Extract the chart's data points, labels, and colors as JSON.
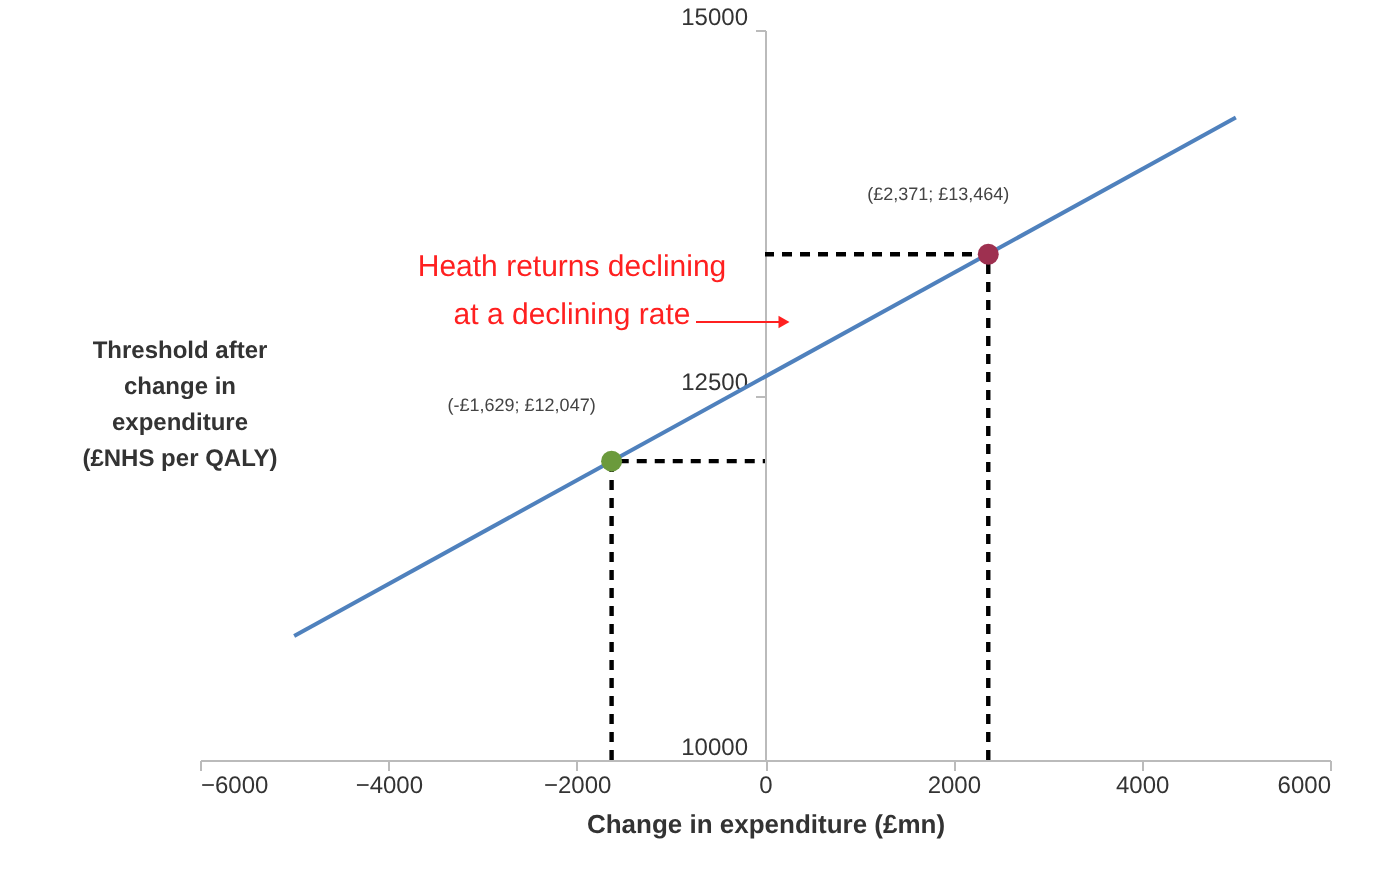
{
  "chart_data": {
    "type": "line",
    "xlabel": "Change in expenditure (£mn)",
    "ylabel": "Threshold after\nchange in\nexpenditure\n(£NHS per QALY)",
    "xlim": [
      -6000,
      6000
    ],
    "xticks": [
      -6000,
      -4000,
      -2000,
      0,
      2000,
      4000,
      6000
    ],
    "ylim": [
      10000,
      15000
    ],
    "yticks": [
      10000,
      12500,
      15000
    ],
    "grid": false,
    "series": [
      {
        "type": "line",
        "color": "#4f81bd",
        "marker": "none",
        "line_style": "solid",
        "x": [
          -5000,
          5000
        ],
        "values": [
          10850,
          14400
        ]
      },
      {
        "type": "line",
        "color": "#000000",
        "marker": "none",
        "line_style": "dashed",
        "x": [
          -1629,
          -1629,
          0
        ],
        "values": [
          10000,
          12047,
          12047
        ]
      },
      {
        "type": "line",
        "color": "#000000",
        "marker": "none",
        "line_style": "dashed",
        "x": [
          2371,
          2371,
          0
        ],
        "values": [
          10000,
          13464,
          13464
        ]
      },
      {
        "type": "scatter",
        "color": "#6b9a3c",
        "marker": "circle",
        "x": [
          -1629
        ],
        "values": [
          12047
        ]
      },
      {
        "type": "scatter",
        "color": "#9e3050",
        "marker": "circle",
        "x": [
          2371
        ],
        "values": [
          13464
        ]
      }
    ],
    "annotations": [
      {
        "text": "(-£1,629; £12,047)",
        "x": -1629,
        "y": 12047
      },
      {
        "text": "(£2,371; £13,464)",
        "x": 2371,
        "y": 13464
      },
      "Heath returns declining\nat a declining rate"
    ]
  }
}
